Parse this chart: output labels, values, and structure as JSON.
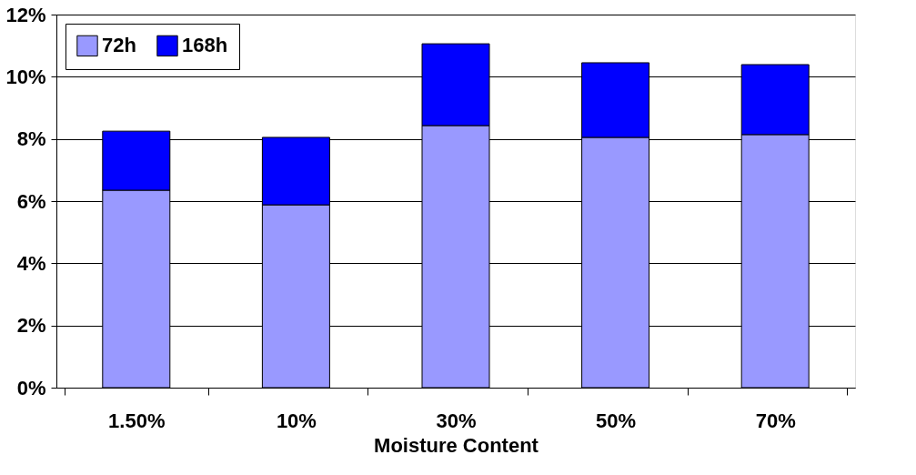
{
  "chart_data": {
    "type": "bar",
    "stacked": true,
    "xlabel": "Moisture Content",
    "categories": [
      "1.50%",
      "10%",
      "30%",
      "50%",
      "70%"
    ],
    "series": [
      {
        "name": "72h",
        "color": "#9999ff",
        "values": [
          6.35,
          5.88,
          8.43,
          8.05,
          8.14
        ]
      },
      {
        "name": "168h",
        "color": "#0000ff",
        "values": [
          1.9,
          2.17,
          2.63,
          2.4,
          2.25
        ]
      }
    ],
    "ylim": [
      0,
      12
    ],
    "yticks": [
      {
        "value": 0,
        "label": "0%"
      },
      {
        "value": 2,
        "label": "2%"
      },
      {
        "value": 4,
        "label": "4%"
      },
      {
        "value": 6,
        "label": "6%"
      },
      {
        "value": 8,
        "label": "8%"
      },
      {
        "value": 10,
        "label": "10%"
      },
      {
        "value": 12,
        "label": "12%"
      }
    ],
    "grid": "y",
    "legend": "top left"
  }
}
